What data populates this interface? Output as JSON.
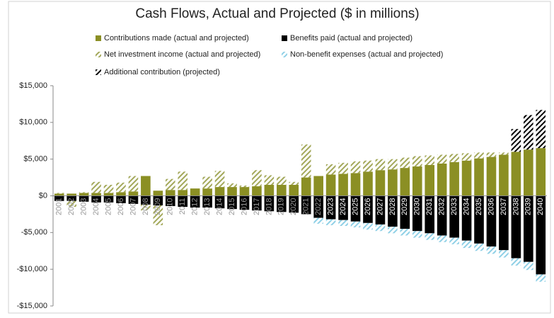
{
  "chart_data": {
    "type": "bar",
    "stacked": true,
    "title": "Cash Flows, Actual and Projected ($ in millions)",
    "categories": [
      "2001",
      "2002",
      "2003",
      "2004",
      "2005",
      "2006",
      "2007",
      "2008",
      "2009",
      "2010",
      "2011",
      "2012",
      "2013",
      "2014",
      "2015",
      "2016",
      "2017",
      "2018",
      "2019",
      "2020",
      "2021",
      "2022",
      "2023",
      "2024",
      "2025",
      "2026",
      "2027",
      "2028",
      "2029",
      "2030",
      "2031",
      "2032",
      "2033",
      "2034",
      "2035",
      "2036",
      "2037",
      "2038",
      "2039",
      "2040"
    ],
    "series": [
      {
        "name": "Contributions made (actual and projected)",
        "color": "#8b8f24",
        "hatched": false,
        "values": [
          300,
          300,
          400,
          400,
          400,
          500,
          600,
          2700,
          700,
          800,
          800,
          1000,
          1000,
          1200,
          1200,
          1200,
          1300,
          1500,
          1500,
          1500,
          2500,
          2700,
          2900,
          3000,
          3100,
          3300,
          3500,
          3600,
          3800,
          4000,
          4200,
          4400,
          4600,
          4800,
          5100,
          5300,
          5600,
          6000,
          6300,
          6500
        ]
      },
      {
        "name": "Benefits paid (actual and projected)",
        "color": "#000000",
        "hatched": false,
        "values": [
          -700,
          -700,
          -800,
          -900,
          -900,
          -1000,
          -1100,
          -1200,
          -1300,
          -1400,
          -1500,
          -1600,
          -1600,
          -1700,
          -1800,
          -1900,
          -2000,
          -2100,
          -2200,
          -2300,
          -2500,
          -3000,
          -3200,
          -3300,
          -3500,
          -3700,
          -3900,
          -4200,
          -4500,
          -4800,
          -5100,
          -5400,
          -5700,
          -6100,
          -6500,
          -6900,
          -7400,
          -8500,
          -9000,
          -10700
        ]
      },
      {
        "name": "Net investment income (actual and projected)",
        "color": "#a3a85a",
        "hatched": true,
        "values": [
          100,
          -800,
          100,
          1500,
          1100,
          1300,
          2100,
          -800,
          -2700,
          1500,
          2500,
          0,
          1600,
          2200,
          500,
          200,
          2200,
          1300,
          1100,
          400,
          4500,
          0,
          1400,
          1500,
          1600,
          1500,
          1500,
          1400,
          1400,
          1400,
          1300,
          1200,
          1100,
          1000,
          800,
          600,
          300,
          0,
          0,
          0
        ]
      },
      {
        "name": "Non-benefit expenses (actual and projected)",
        "color": "#8fd0e6",
        "hatched": true,
        "values": [
          0,
          0,
          0,
          0,
          0,
          0,
          0,
          0,
          0,
          0,
          0,
          0,
          0,
          0,
          0,
          0,
          0,
          0,
          0,
          0,
          0,
          -800,
          -800,
          -800,
          -800,
          -900,
          -900,
          -900,
          -900,
          -900,
          -900,
          -900,
          -900,
          -1000,
          -1000,
          -1000,
          -1000,
          -1000,
          -1100,
          -1000
        ]
      },
      {
        "name": "Additional contribution (projected)",
        "color": "#000000",
        "hatched": true,
        "values": [
          0,
          0,
          0,
          0,
          0,
          0,
          0,
          0,
          0,
          0,
          0,
          0,
          0,
          0,
          0,
          0,
          0,
          0,
          0,
          0,
          0,
          0,
          0,
          0,
          0,
          0,
          0,
          0,
          0,
          0,
          0,
          0,
          0,
          0,
          0,
          0,
          0,
          3100,
          4700,
          5200
        ]
      }
    ],
    "ylim": [
      -15000,
      15000
    ],
    "yticks": [
      {
        "value": -15000,
        "label": "-$15,000"
      },
      {
        "value": -10000,
        "label": "-$10,000"
      },
      {
        "value": -5000,
        "label": "-$5,000"
      },
      {
        "value": 0,
        "label": "$0"
      },
      {
        "value": 5000,
        "label": "$5,000"
      },
      {
        "value": 10000,
        "label": "$10,000"
      },
      {
        "value": 15000,
        "label": "$15,000"
      }
    ],
    "grid": false,
    "legend": "top"
  }
}
